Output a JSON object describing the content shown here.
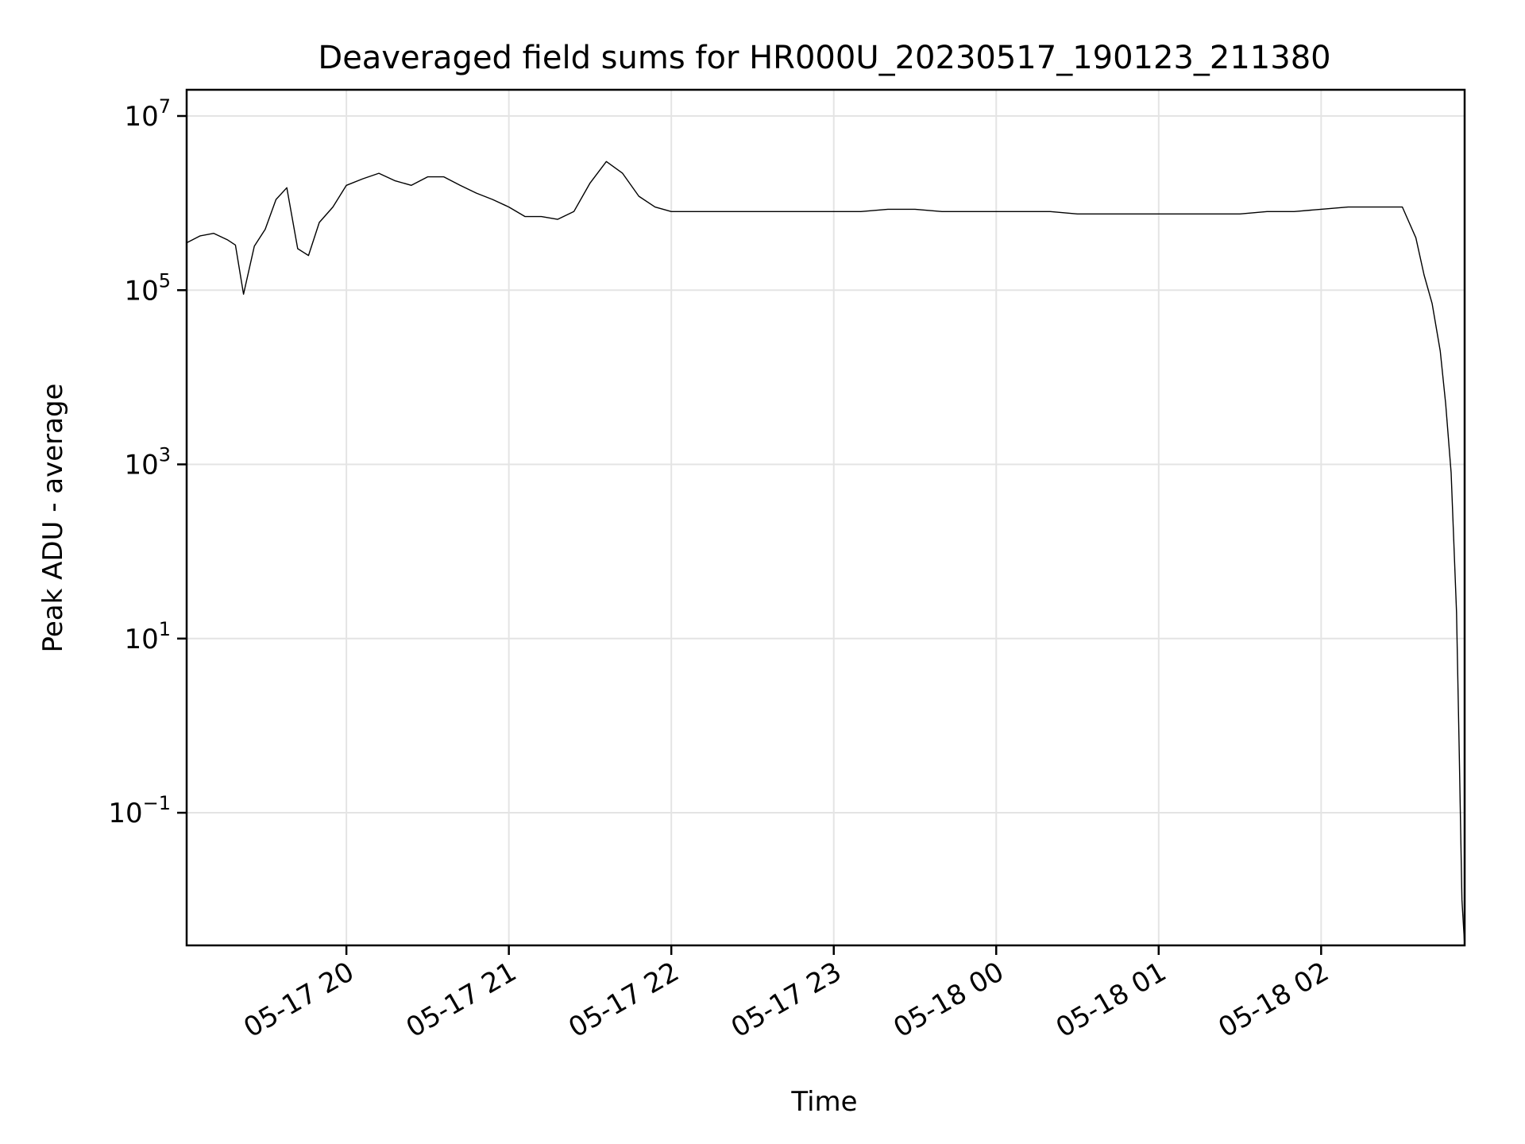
{
  "chart_data": {
    "type": "line",
    "title": "Deaveraged field sums for HR000U_20230517_190123_211380",
    "xlabel": "Time",
    "ylabel": "Peak ADU - average",
    "yscale": "log",
    "ylim": [
      0.003,
      20000000
    ],
    "xlim": [
      "2023-05-17 19:01",
      "2023-05-18 02:53"
    ],
    "grid": true,
    "legend": "none",
    "line_color": "#000000",
    "x_ticks": [
      {
        "value": "2023-05-17 20:00",
        "label": "05-17 20"
      },
      {
        "value": "2023-05-17 21:00",
        "label": "05-17 21"
      },
      {
        "value": "2023-05-17 22:00",
        "label": "05-17 22"
      },
      {
        "value": "2023-05-17 23:00",
        "label": "05-17 23"
      },
      {
        "value": "2023-05-18 00:00",
        "label": "05-18 00"
      },
      {
        "value": "2023-05-18 01:00",
        "label": "05-18 01"
      },
      {
        "value": "2023-05-18 02:00",
        "label": "05-18 02"
      }
    ],
    "y_ticks": [
      {
        "value": 0.1,
        "base": "10",
        "exp": "−1"
      },
      {
        "value": 10,
        "base": "10",
        "exp": "1"
      },
      {
        "value": 1000,
        "base": "10",
        "exp": "3"
      },
      {
        "value": 100000,
        "base": "10",
        "exp": "5"
      },
      {
        "value": 10000000,
        "base": "10",
        "exp": "7"
      }
    ],
    "series": [
      {
        "x": [
          "2023-05-17 19:01",
          "2023-05-17 19:06",
          "2023-05-17 19:11",
          "2023-05-17 19:16",
          "2023-05-17 19:19",
          "2023-05-17 19:22",
          "2023-05-17 19:26",
          "2023-05-17 19:30",
          "2023-05-17 19:34",
          "2023-05-17 19:38",
          "2023-05-17 19:42",
          "2023-05-17 19:46",
          "2023-05-17 19:50",
          "2023-05-17 19:55",
          "2023-05-17 20:00",
          "2023-05-17 20:06",
          "2023-05-17 20:12",
          "2023-05-17 20:18",
          "2023-05-17 20:24",
          "2023-05-17 20:30",
          "2023-05-17 20:36",
          "2023-05-17 20:42",
          "2023-05-17 20:48",
          "2023-05-17 20:54",
          "2023-05-17 21:00",
          "2023-05-17 21:06",
          "2023-05-17 21:12",
          "2023-05-17 21:18",
          "2023-05-17 21:24",
          "2023-05-17 21:30",
          "2023-05-17 21:36",
          "2023-05-17 21:42",
          "2023-05-17 21:48",
          "2023-05-17 21:54",
          "2023-05-17 22:00",
          "2023-05-17 22:10",
          "2023-05-17 22:20",
          "2023-05-17 22:30",
          "2023-05-17 22:40",
          "2023-05-17 22:50",
          "2023-05-17 23:00",
          "2023-05-17 23:10",
          "2023-05-17 23:20",
          "2023-05-17 23:30",
          "2023-05-17 23:40",
          "2023-05-17 23:50",
          "2023-05-18 00:00",
          "2023-05-18 00:10",
          "2023-05-18 00:20",
          "2023-05-18 00:30",
          "2023-05-18 00:40",
          "2023-05-18 00:50",
          "2023-05-18 01:00",
          "2023-05-18 01:10",
          "2023-05-18 01:20",
          "2023-05-18 01:30",
          "2023-05-18 01:40",
          "2023-05-18 01:50",
          "2023-05-18 02:00",
          "2023-05-18 02:10",
          "2023-05-18 02:20",
          "2023-05-18 02:30",
          "2023-05-18 02:35",
          "2023-05-18 02:38",
          "2023-05-18 02:41",
          "2023-05-18 02:44",
          "2023-05-18 02:46",
          "2023-05-18 02:48",
          "2023-05-18 02:50",
          "2023-05-18 02:51",
          "2023-05-18 02:52",
          "2023-05-18 02:53"
        ],
        "values": [
          350000,
          420000,
          450000,
          380000,
          330000,
          90000,
          320000,
          500000,
          1100000,
          1500000,
          300000,
          250000,
          600000,
          900000,
          1600000,
          1900000,
          2200000,
          1800000,
          1600000,
          2000000,
          2000000,
          1600000,
          1300000,
          1100000,
          900000,
          700000,
          700000,
          650000,
          800000,
          1700000,
          3000000,
          2200000,
          1200000,
          900000,
          800000,
          800000,
          800000,
          800000,
          800000,
          800000,
          800000,
          800000,
          850000,
          850000,
          800000,
          800000,
          800000,
          800000,
          800000,
          750000,
          750000,
          750000,
          750000,
          750000,
          750000,
          750000,
          800000,
          800000,
          850000,
          900000,
          900000,
          900000,
          400000,
          150000,
          70000,
          20000,
          5000,
          800,
          20,
          0.5,
          0.01,
          0.003
        ]
      }
    ]
  }
}
